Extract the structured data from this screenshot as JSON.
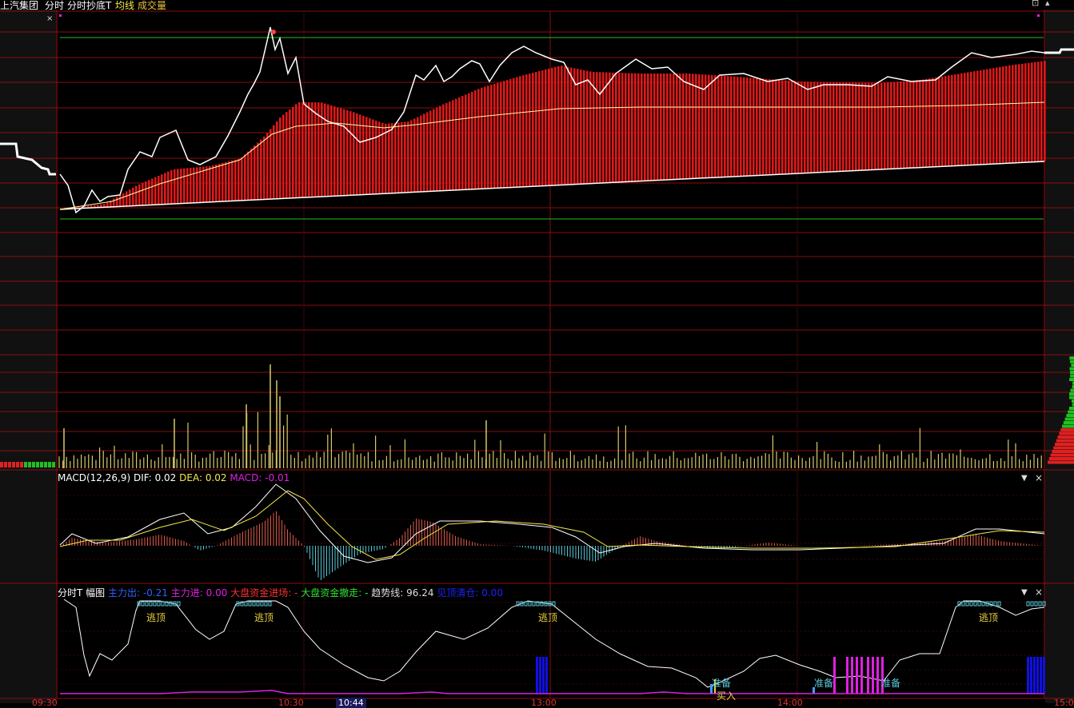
{
  "header": {
    "stock_name": "上汽集团",
    "view_mode": "分时",
    "indicator_name": "分时抄底T",
    "ma_label": "均线",
    "volume_label": "成交量"
  },
  "macd_panel": {
    "title": "MACD(12,26,9)",
    "dif_label": "DIF:",
    "dif_value": "0.02",
    "dea_label": "DEA:",
    "dea_value": "0.02",
    "macd_label": "MACD:",
    "macd_value": "-0.01"
  },
  "t_panel": {
    "title": "分时T",
    "sub_title": "幅图",
    "main_out_label": "主力出:",
    "main_out_value": "-0.21",
    "main_in_label": "主力进:",
    "main_in_value": "0.00",
    "big_in_label": "大盘资金进场:",
    "big_in_value": "-",
    "big_out_label": "大盘资金撤走:",
    "big_out_value": "-",
    "trend_label": "趋势线:",
    "trend_value": "96.24",
    "top_label": "见顶清仓:",
    "top_value": "0.00",
    "signals": {
      "escape_top": "逃顶",
      "prepare": "准备",
      "buy_in": "买入"
    }
  },
  "time_axis": [
    "09:30",
    "10:30",
    "10:44",
    "13:00",
    "14:00",
    "15:00"
  ],
  "colors": {
    "background": "#000000",
    "grid": "#8a0e0e",
    "price_line": "#ffffff",
    "avg_line": "#ffffaa",
    "bars_red": "#e01818",
    "volume_bars": "#d8c86a",
    "macd_pos": "#e05a4a",
    "macd_neg": "#58c8d8",
    "signal_blue": "#1010e0",
    "signal_magenta": "#e020e0"
  },
  "icons": {
    "close": "close-icon",
    "dropdown": "chevron-down-icon",
    "window": "window-icon"
  }
}
